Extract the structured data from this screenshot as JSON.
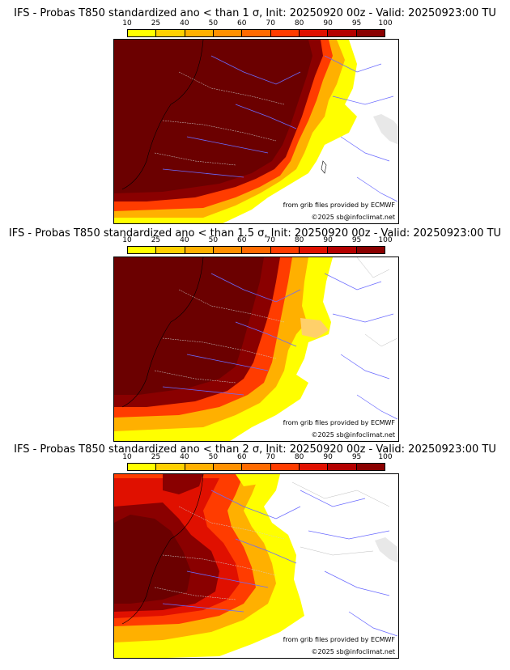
{
  "colorbar": {
    "ticks": [
      "10",
      "25",
      "40",
      "50",
      "60",
      "70",
      "80",
      "90",
      "95",
      "100"
    ],
    "colors": [
      "#ffff00",
      "#ffd000",
      "#ffb000",
      "#ff9000",
      "#ff6a00",
      "#ff3c00",
      "#e01000",
      "#b40000",
      "#8a0000"
    ]
  },
  "panels": [
    {
      "title": "IFS - Probas T850  standardized ano < than 1 σ, Init: 20250920 00z - Valid: 20250923:00 TU",
      "threshold": "1 σ",
      "source": "from grib files provided by ECMWF",
      "copyright": "©2025 sb@infoclimat.net"
    },
    {
      "title": "IFS - Probas T850  standardized ano < than 1.5 σ, Init: 20250920 00z - Valid: 20250923:00 TU",
      "threshold": "1.5 σ",
      "source": "from grib files provided by ECMWF",
      "copyright": "©2025 sb@infoclimat.net"
    },
    {
      "title": "IFS - Probas T850  standardized ano < than 2 σ, Init: 20250920 00z - Valid: 20250923:00 TU",
      "threshold": "2 σ",
      "source": "from grib files provided by ECMWF",
      "copyright": "©2025 sb@infoclimat.net"
    }
  ]
}
